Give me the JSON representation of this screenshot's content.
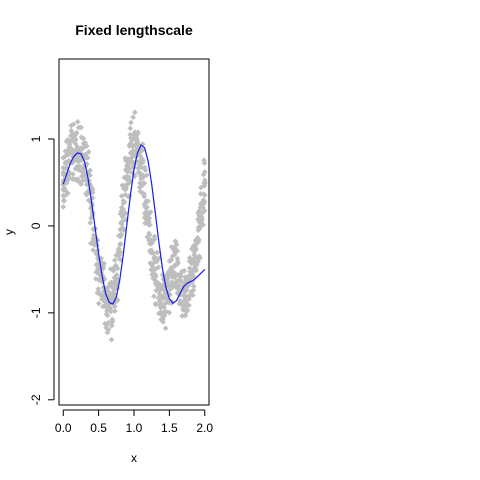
{
  "chart_data": {
    "type": "scatter",
    "title": "Fixed lengthscale",
    "xlabel": "x",
    "ylabel": "y",
    "xlim": [
      -0.06,
      2.06
    ],
    "ylim": [
      -2.06,
      1.92
    ],
    "x_ticks": [
      {
        "value": 0.0,
        "label": "0.0"
      },
      {
        "value": 0.5,
        "label": "0.5"
      },
      {
        "value": 1.0,
        "label": "1.0"
      },
      {
        "value": 1.5,
        "label": "1.5"
      },
      {
        "value": 2.0,
        "label": "2.0"
      }
    ],
    "y_ticks": [
      {
        "value": -2,
        "label": "-2"
      },
      {
        "value": -1,
        "label": "-1"
      },
      {
        "value": 0,
        "label": "0"
      },
      {
        "value": 1,
        "label": "1"
      }
    ],
    "colors": {
      "points": "#bebebe",
      "fit": "#1a1ae6",
      "axis": "#000000"
    },
    "series": [
      {
        "kind": "points",
        "x": [
          0.0,
          0.04,
          0.08,
          0.12,
          0.16,
          0.2,
          0.24,
          0.28,
          0.32,
          0.36,
          0.4,
          0.44,
          0.48,
          0.52,
          0.56,
          0.6,
          0.64,
          0.68,
          0.72,
          0.76,
          0.8,
          0.84,
          0.88,
          0.92,
          0.96,
          1.0,
          1.04,
          1.08,
          1.12,
          1.16,
          1.2,
          1.24,
          1.28,
          1.32,
          1.36,
          1.4,
          1.44,
          1.48,
          1.52,
          1.56,
          1.6,
          1.64,
          1.68,
          1.72,
          1.76,
          1.8,
          1.84,
          1.88,
          1.92,
          1.96,
          2.0
        ],
        "y": [
          0.45,
          0.6,
          0.75,
          0.82,
          0.88,
          0.85,
          0.82,
          0.78,
          0.65,
          0.45,
          0.2,
          -0.1,
          -0.35,
          -0.55,
          -0.75,
          -0.88,
          -0.92,
          -0.88,
          -0.7,
          -0.45,
          -0.15,
          0.15,
          0.45,
          0.7,
          0.88,
          0.92,
          0.88,
          0.75,
          0.55,
          0.3,
          0.05,
          -0.2,
          -0.45,
          -0.65,
          -0.8,
          -0.87,
          -0.87,
          -0.78,
          -0.62,
          -0.45,
          -0.55,
          -0.7,
          -0.85,
          -0.85,
          -0.75,
          -0.6,
          -0.5,
          -0.3,
          -0.1,
          0.2,
          0.4
        ],
        "y_spread": 0.35
      },
      {
        "kind": "line",
        "x": [
          0.0,
          0.05,
          0.1,
          0.15,
          0.2,
          0.25,
          0.3,
          0.35,
          0.4,
          0.45,
          0.5,
          0.55,
          0.6,
          0.65,
          0.7,
          0.75,
          0.8,
          0.85,
          0.9,
          0.95,
          1.0,
          1.05,
          1.1,
          1.15,
          1.2,
          1.25,
          1.3,
          1.35,
          1.4,
          1.45,
          1.5,
          1.55,
          1.6,
          1.65,
          1.7,
          1.75,
          1.8,
          1.85,
          1.9,
          1.95,
          2.0
        ],
        "y": [
          0.48,
          0.6,
          0.72,
          0.8,
          0.84,
          0.83,
          0.74,
          0.55,
          0.28,
          -0.02,
          -0.32,
          -0.58,
          -0.78,
          -0.88,
          -0.9,
          -0.82,
          -0.62,
          -0.32,
          0.02,
          0.36,
          0.65,
          0.84,
          0.93,
          0.9,
          0.74,
          0.48,
          0.16,
          -0.18,
          -0.48,
          -0.7,
          -0.84,
          -0.89,
          -0.86,
          -0.78,
          -0.7,
          -0.66,
          -0.64,
          -0.62,
          -0.58,
          -0.54,
          -0.5
        ]
      }
    ]
  }
}
